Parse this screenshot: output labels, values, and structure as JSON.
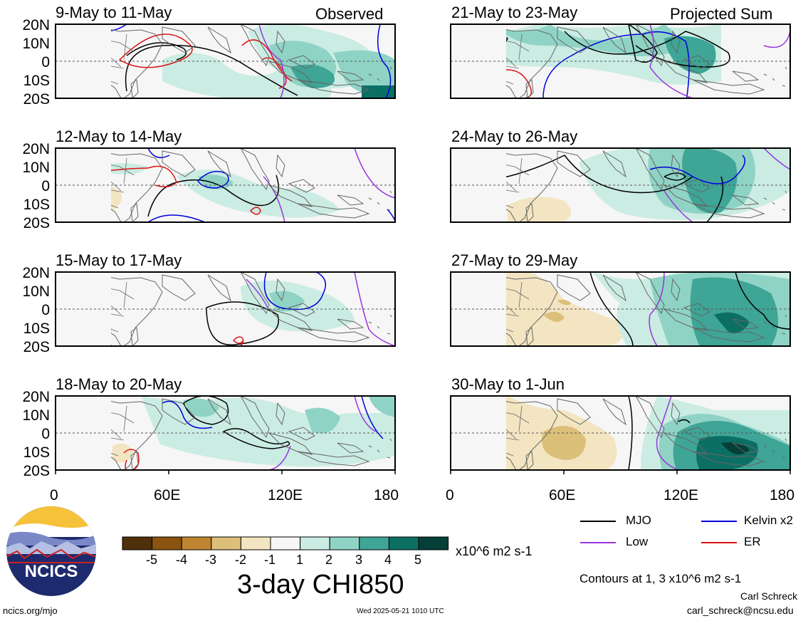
{
  "panels": {
    "observed_label": "Observed",
    "projected_label": "Projected Sum",
    "titles": [
      "9-May to 11-May",
      "12-May to 14-May",
      "15-May to 17-May",
      "18-May to 20-May",
      "21-May to 23-May",
      "24-May to 26-May",
      "27-May to 29-May",
      "30-May to 1-Jun"
    ],
    "lat_ticks": [
      "20N",
      "10N",
      "0",
      "10S",
      "20S"
    ],
    "lon_ticks": [
      "0",
      "60E",
      "120E",
      "180"
    ]
  },
  "legend": {
    "mjo": "MJO",
    "kelvin": "Kelvin x2",
    "low": "Low",
    "er": "ER",
    "colors": {
      "mjo": "#000000",
      "kelvin": "#0000dd",
      "low": "#9933dd",
      "er": "#dd1111"
    },
    "contour_note": "Contours at 1, 3 x10^6 m2 s-1"
  },
  "colorbar": {
    "labels": [
      "-5",
      "-4",
      "-3",
      "-2",
      "-1",
      "1",
      "2",
      "3",
      "4",
      "5"
    ],
    "colors": [
      "#4f300a",
      "#8a5410",
      "#c08530",
      "#dcc07a",
      "#f3e5c1",
      "#f6f6f6",
      "#cbece3",
      "#8fd3c5",
      "#3fa596",
      "#0c6f64",
      "#053f38"
    ],
    "units": "x10^6 m2 s-1",
    "title": "3-day CHI850"
  },
  "footer": {
    "logo_text": "NCICS",
    "site": "ncics.org/mjo",
    "timestamp": "Wed 2025-05-21 1010 UTC",
    "author": "Carl Schreck",
    "email": "carl_schreck@ncsu.edu"
  }
}
